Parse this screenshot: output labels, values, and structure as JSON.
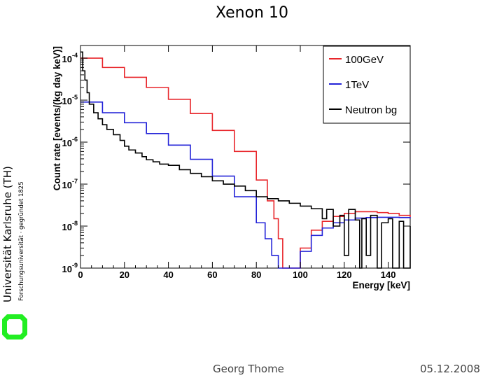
{
  "slide": {
    "title": "Xenon 10",
    "footer_author": "Georg Thome",
    "footer_date": "05.12.2008"
  },
  "branding": {
    "university_name": "Universität Karlsruhe (TH)",
    "university_subtitle": "Forschungsuniversität · gegründet 1825",
    "logo_color": "#22ee22"
  },
  "chart_data": {
    "type": "line",
    "title": "",
    "xlabel": "Energy [keV]",
    "ylabel": "Count rate [events/(kg day keV)]",
    "xscale": "linear",
    "yscale": "log",
    "xlim": [
      0,
      150
    ],
    "ylim": [
      1e-09,
      0.0002
    ],
    "x_ticks": [
      0,
      20,
      40,
      60,
      80,
      100,
      120,
      140
    ],
    "y_ticks": [
      {
        "value": 1e-09,
        "base": "10",
        "exp": "-9"
      },
      {
        "value": 1e-08,
        "base": "10",
        "exp": "-8"
      },
      {
        "value": 1e-07,
        "base": "10",
        "exp": "-7"
      },
      {
        "value": 1e-06,
        "base": "10",
        "exp": "-6"
      },
      {
        "value": 1e-05,
        "base": "10",
        "exp": "-5"
      },
      {
        "value": 0.0001,
        "base": "10",
        "exp": "-4"
      }
    ],
    "legend_position": "top-right",
    "series": [
      {
        "name": "100GeV",
        "color": "#e8262b",
        "x": [
          0,
          10,
          20,
          30,
          40,
          50,
          60,
          70,
          80,
          85,
          88,
          90,
          92,
          95,
          98,
          100,
          105,
          110,
          115,
          120,
          125,
          130,
          135,
          140,
          145,
          150
        ],
        "y": [
          0.0001,
          6e-05,
          3.5e-05,
          2e-05,
          1.05e-05,
          4.8e-06,
          1.9e-06,
          6e-07,
          1.25e-07,
          4e-08,
          1.5e-08,
          5e-09,
          1e-09,
          1e-09,
          1e-09,
          3e-09,
          8e-09,
          1.3e-08,
          1.7e-08,
          2e-08,
          2.2e-08,
          2.2e-08,
          2.1e-08,
          2e-08,
          1.8e-08,
          1.65e-08
        ]
      },
      {
        "name": "1TeV",
        "color": "#2323d8",
        "x": [
          0,
          10,
          20,
          30,
          40,
          50,
          60,
          70,
          80,
          84,
          87,
          90,
          92,
          95,
          98,
          100,
          105,
          110,
          115,
          120,
          125,
          130,
          135,
          140,
          145,
          150
        ],
        "y": [
          9e-06,
          5e-06,
          2.9e-06,
          1.6e-06,
          8.5e-07,
          3.9e-07,
          1.55e-07,
          5e-08,
          1.2e-08,
          5e-09,
          2e-09,
          1e-09,
          1e-09,
          1e-09,
          1e-09,
          2.5e-09,
          6e-09,
          9e-09,
          1.2e-08,
          1.4e-08,
          1.55e-08,
          1.6e-08,
          1.62e-08,
          1.62e-08,
          1.6e-08,
          1.55e-08
        ]
      },
      {
        "name": "Neutron bg",
        "color": "#000000",
        "x": [
          0,
          1,
          2,
          3,
          4,
          6,
          8,
          10,
          12,
          15,
          18,
          20,
          22,
          25,
          28,
          30,
          33,
          36,
          40,
          45,
          50,
          55,
          60,
          65,
          70,
          75,
          80,
          85,
          90,
          95,
          100,
          105,
          110,
          112,
          115,
          118,
          120,
          122,
          125,
          127,
          128,
          130,
          132,
          135,
          137,
          140,
          142,
          145,
          147,
          150
        ],
        "y": [
          0.00014,
          5e-05,
          3e-05,
          1.5e-05,
          8e-06,
          5e-06,
          3.6e-06,
          2.6e-06,
          2e-06,
          1.5e-06,
          1.1e-06,
          8e-07,
          6.5e-07,
          5.5e-07,
          4.5e-07,
          3.8e-07,
          3.4e-07,
          3e-07,
          2.8e-07,
          2.2e-07,
          1.8e-07,
          1.5e-07,
          1.2e-07,
          1e-07,
          9e-08,
          7e-08,
          5e-08,
          4.5e-08,
          4e-08,
          3.5e-08,
          3e-08,
          2.6e-08,
          1.5e-08,
          2.5e-08,
          1e-08,
          1.8e-08,
          2e-09,
          2.5e-08,
          1.4e-08,
          1e-09,
          1.5e-08,
          2e-09,
          1.8e-08,
          1e-09,
          1.2e-08,
          1.5e-08,
          1e-09,
          1.3e-08,
          1e-09,
          1e-08
        ]
      }
    ]
  }
}
